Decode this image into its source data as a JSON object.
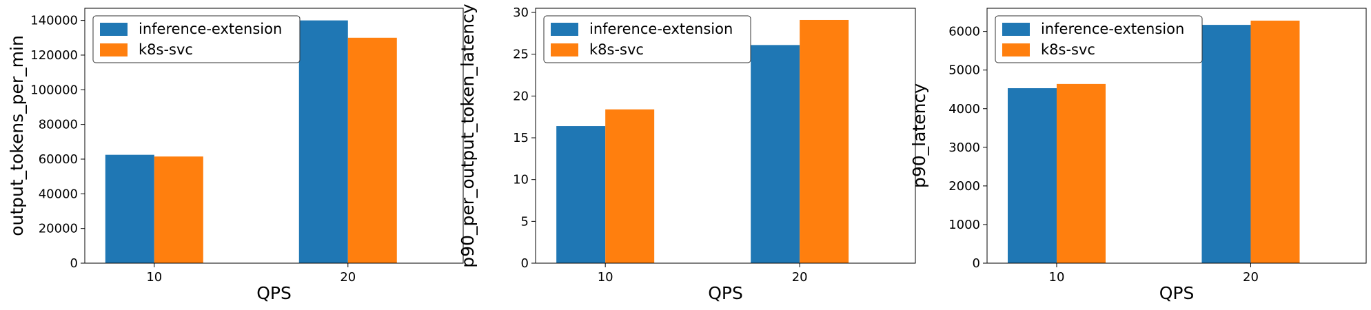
{
  "chart_data": [
    {
      "type": "bar",
      "categories": [
        "10",
        "20"
      ],
      "xlabel": "QPS",
      "ylabel": "output_tokens_per_min",
      "ylim": [
        0,
        147000
      ],
      "yticks": [
        0,
        20000,
        40000,
        60000,
        80000,
        100000,
        120000,
        140000
      ],
      "legend": "top-left",
      "grid": false,
      "series": [
        {
          "name": "inference-extension",
          "color": "#1f77b4",
          "values": [
            62500,
            140000
          ]
        },
        {
          "name": "k8s-svc",
          "color": "#ff7f0e",
          "values": [
            61500,
            130000
          ]
        }
      ]
    },
    {
      "type": "bar",
      "categories": [
        "10",
        "20"
      ],
      "xlabel": "QPS",
      "ylabel": "p90_per_output_token_latency",
      "ylim": [
        0,
        30.5
      ],
      "yticks": [
        0,
        5,
        10,
        15,
        20,
        25,
        30
      ],
      "legend": "top-left",
      "grid": false,
      "series": [
        {
          "name": "inference-extension",
          "color": "#1f77b4",
          "values": [
            16.4,
            26.1
          ]
        },
        {
          "name": "k8s-svc",
          "color": "#ff7f0e",
          "values": [
            18.4,
            29.1
          ]
        }
      ]
    },
    {
      "type": "bar",
      "categories": [
        "10",
        "20"
      ],
      "xlabel": "QPS",
      "ylabel": "p90_latency",
      "ylim": [
        0,
        6600
      ],
      "yticks": [
        0,
        1000,
        2000,
        3000,
        4000,
        5000,
        6000
      ],
      "legend": "top-left",
      "grid": false,
      "series": [
        {
          "name": "inference-extension",
          "color": "#1f77b4",
          "values": [
            4530,
            6170
          ]
        },
        {
          "name": "k8s-svc",
          "color": "#ff7f0e",
          "values": [
            4640,
            6280
          ]
        }
      ]
    }
  ]
}
